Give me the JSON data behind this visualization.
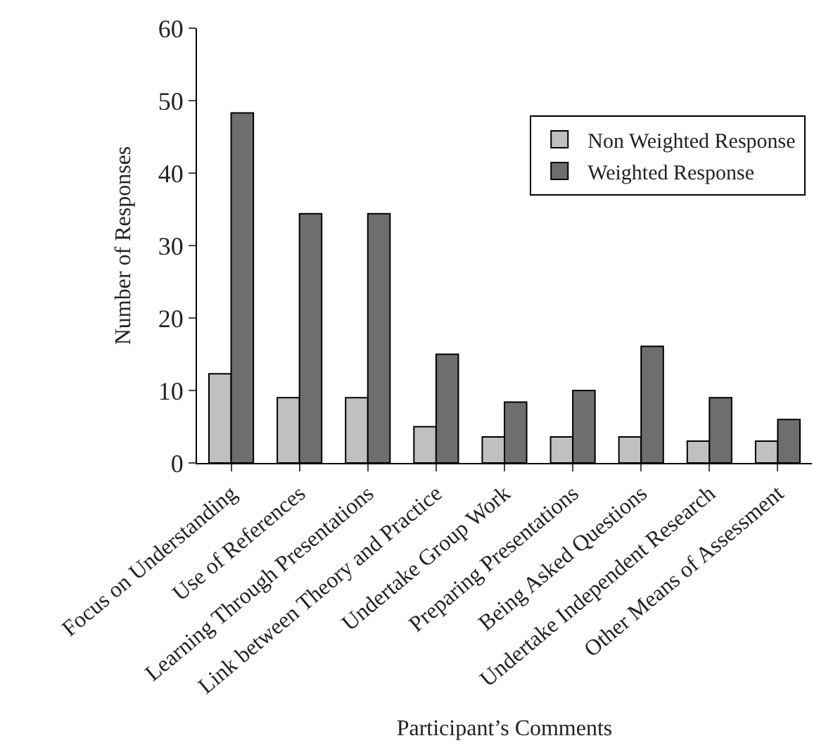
{
  "chart_data": {
    "type": "bar",
    "xlabel": "Participant’s Comments",
    "ylabel": "Number of Responses",
    "categories": [
      "Focus on Understanding",
      "Use of References",
      "Learning Through Presentations",
      "Link between Theory and Practice",
      "Undertake Group Work",
      "Preparing Presentations",
      "Being Asked Questions",
      "Undertake Independent Research",
      "Other Means of Assessment"
    ],
    "series": [
      {
        "name": "Non Weighted Response",
        "color": "#c0c0c0",
        "values": [
          12.3,
          9,
          9,
          5,
          3.6,
          3.6,
          3.6,
          3,
          3
        ]
      },
      {
        "name": "Weighted Response",
        "color": "#6e6e6e",
        "values": [
          48.3,
          34.4,
          34.4,
          15,
          8.4,
          10,
          16.1,
          9,
          6
        ]
      }
    ],
    "ylim": [
      0,
      60
    ],
    "yticks": [
      0,
      10,
      20,
      30,
      40,
      50,
      60
    ],
    "legend": "top right"
  }
}
